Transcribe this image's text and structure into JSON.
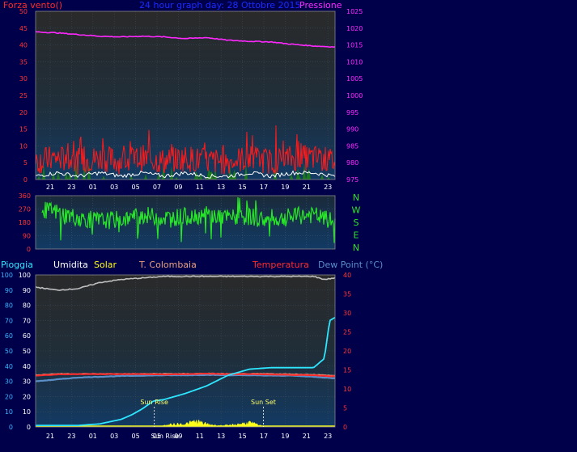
{
  "colors": {
    "background": "#00004a",
    "panel_top": "#262626",
    "panel_bottom": "#123a64",
    "wind": "#ff1a1a",
    "wind_avg": "#ffffff",
    "wind_gust_fill": "#1a7a1a",
    "pressure": "#ff28ff",
    "direction": "#27e627",
    "humidity": "#bfbfbf",
    "rain": "#2ee6ff",
    "solar": "#ffff1a",
    "temperature": "#ff2b2b",
    "dew_point": "#5a8fc8",
    "colombia_temp": "#e8a080",
    "axis_text": "#ffffff",
    "rain_axis": "#3cb4ff",
    "temp_axis": "#ff3333"
  },
  "chart_data": [
    {
      "type": "line",
      "name": "wind-pressure",
      "title": "24 hour graph day:  28 Ottobre 2015",
      "left_label": "Forza vento()",
      "right_label": "Pressione",
      "x_ticks": [
        "21",
        "23",
        "01",
        "03",
        "05",
        "07",
        "09",
        "11",
        "13",
        "15",
        "17",
        "19",
        "21",
        "23"
      ],
      "y_left_ticks": [
        0,
        5,
        10,
        15,
        20,
        25,
        30,
        35,
        40,
        45,
        50
      ],
      "y_left_range": [
        0,
        50
      ],
      "y_right_ticks": [
        975,
        980,
        985,
        990,
        995,
        1000,
        1005,
        1010,
        1015,
        1020,
        1025
      ],
      "y_right_range": [
        975,
        1025
      ],
      "series": [
        {
          "name": "pressure",
          "x": [
            0,
            2,
            4,
            6,
            8,
            10,
            12,
            14,
            16,
            18,
            20,
            22,
            24,
            26,
            28
          ],
          "values": [
            1018.9,
            1018.6,
            1018.1,
            1017.6,
            1017.4,
            1017.6,
            1017.4,
            1016.9,
            1017.2,
            1016.4,
            1016.1,
            1015.9,
            1015.2,
            1014.7,
            1014.4
          ]
        },
        {
          "name": "wind",
          "x": [
            0,
            2,
            4,
            6,
            8,
            10,
            12,
            14,
            16,
            18,
            20,
            22,
            24,
            26,
            28
          ],
          "values": [
            5,
            6,
            5,
            6,
            5,
            6,
            5,
            6,
            5,
            5,
            6,
            5,
            6,
            6,
            5
          ]
        },
        {
          "name": "wind_avg",
          "x": [
            0,
            2,
            4,
            6,
            8,
            10,
            12,
            14,
            16,
            18,
            20,
            22,
            24,
            26,
            28
          ],
          "values": [
            1,
            2,
            1,
            2,
            1,
            2,
            1,
            2,
            1,
            1,
            2,
            1,
            2,
            2,
            1
          ]
        }
      ]
    },
    {
      "type": "scatter",
      "name": "wind-direction",
      "y_ticks": [
        0,
        90,
        180,
        270,
        360
      ],
      "y_range": [
        0,
        360
      ],
      "compass_labels": [
        "N",
        "W",
        "S",
        "E",
        "N"
      ],
      "x_ticks": [
        "21",
        "23",
        "01",
        "03",
        "05",
        "07",
        "09",
        "11",
        "13",
        "15",
        "17",
        "19",
        "21",
        "23"
      ],
      "series": [
        {
          "name": "direction",
          "x": [
            0,
            2,
            4,
            6,
            8,
            10,
            12,
            14,
            16,
            18,
            20,
            22,
            24,
            26,
            28
          ],
          "values": [
            270,
            250,
            210,
            190,
            200,
            230,
            210,
            220,
            230,
            210,
            220,
            190,
            220,
            230,
            180
          ]
        }
      ]
    },
    {
      "type": "line",
      "name": "rain-temp-solar",
      "legend": [
        "Pioggia",
        "Umidita",
        "Solar",
        "T. Colombaia",
        "Temperatura",
        "Dew Point (°C)"
      ],
      "y_left_ticks": [
        0,
        10,
        20,
        30,
        40,
        50,
        60,
        70,
        80,
        90,
        100
      ],
      "y_left_range": [
        0,
        100
      ],
      "y_right_ticks": [
        0,
        5,
        10,
        15,
        20,
        25,
        30,
        35,
        40
      ],
      "y_right_range": [
        0,
        40
      ],
      "x_ticks": [
        "21",
        "23",
        "01",
        "03",
        "05",
        "07",
        "09",
        "11",
        "13",
        "15",
        "17",
        "19",
        "21",
        "23"
      ],
      "sun_x_tick": "Sun Rise",
      "annotations": [
        {
          "label": "Sun Rise",
          "x": 11.1
        },
        {
          "label": "Sun Set",
          "x": 21.3
        }
      ],
      "series": [
        {
          "name": "humidity",
          "x": [
            0,
            2,
            4,
            6,
            8,
            10,
            12,
            14,
            16,
            18,
            20,
            22,
            24,
            26,
            27,
            28
          ],
          "values": [
            92,
            90,
            91,
            95,
            97,
            98,
            99,
            99,
            99,
            99,
            99,
            99,
            99,
            99,
            97,
            98
          ]
        },
        {
          "name": "rain",
          "x": [
            0,
            4,
            6,
            8,
            9,
            10,
            11,
            12,
            14,
            16,
            18,
            20,
            22,
            24,
            26,
            27,
            27.5,
            28
          ],
          "values": [
            1,
            1,
            2,
            5,
            8,
            12,
            17,
            18,
            22,
            27,
            34,
            38,
            39,
            39,
            39,
            45,
            70,
            72
          ]
        },
        {
          "name": "temperature",
          "x": [
            0,
            2,
            4,
            6,
            8,
            10,
            12,
            14,
            16,
            18,
            20,
            22,
            24,
            26,
            28
          ],
          "values": [
            13.5,
            13.8,
            13.9,
            13.9,
            13.9,
            13.9,
            13.8,
            13.9,
            14,
            13.9,
            13.9,
            13.8,
            13.7,
            13.6,
            13.3
          ]
        },
        {
          "name": "dew_point",
          "x": [
            0,
            2,
            4,
            6,
            8,
            10,
            12,
            14,
            16,
            18,
            20,
            22,
            24,
            26,
            28
          ],
          "values": [
            12,
            12.5,
            13,
            13.2,
            13.4,
            13.5,
            13.6,
            13.6,
            13.7,
            13.6,
            13.6,
            13.5,
            13.5,
            13.2,
            12.8
          ]
        },
        {
          "name": "colombia_temp",
          "x": [
            0,
            2,
            4,
            6,
            8,
            10,
            12,
            14,
            16,
            18,
            20,
            22,
            24,
            26,
            28
          ],
          "values": [
            13.7,
            14,
            14,
            14,
            14,
            14,
            14,
            14,
            14.1,
            14,
            14,
            14,
            13.9,
            13.8,
            13.5
          ]
        },
        {
          "name": "solar",
          "x": [
            11,
            12,
            13,
            14,
            15,
            16,
            17,
            18,
            19,
            20,
            21,
            22
          ],
          "values": [
            0,
            1,
            2,
            2,
            4,
            2,
            1,
            1,
            2,
            3,
            1,
            0
          ]
        }
      ]
    }
  ]
}
